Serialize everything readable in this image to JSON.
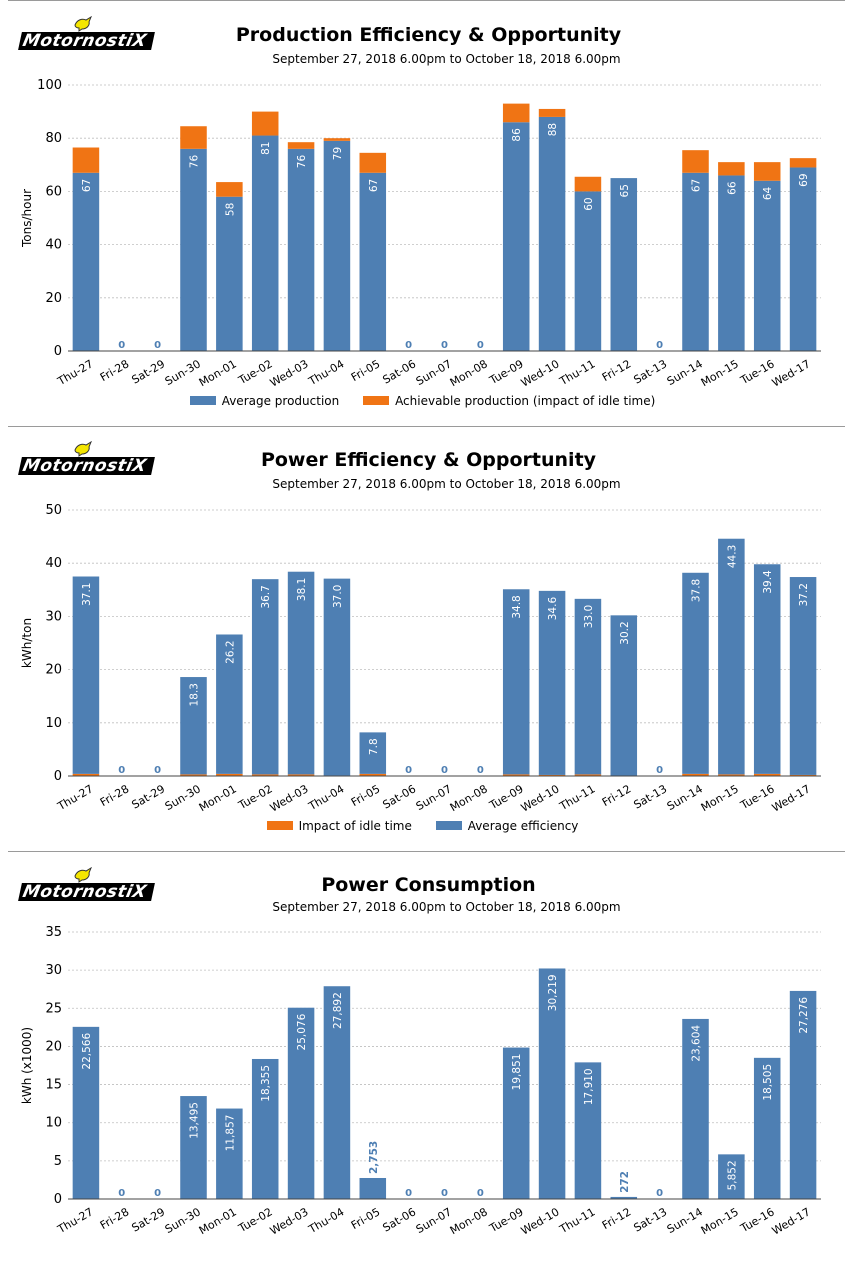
{
  "colors": {
    "blue": "#4e7fb3",
    "orange": "#f07414",
    "grid": "#bfbfbf"
  },
  "logo": {
    "text": "MotornostiX",
    "icon": "bird-icon"
  },
  "chart_data": [
    {
      "type": "bar",
      "stacked": true,
      "title": "Production Efficiency & Opportunity",
      "subtitle": "September 27, 2018 6.00pm to October 18, 2018 6.00pm",
      "ylabel": "Tons/hour",
      "ylim": [
        0,
        100
      ],
      "yticks": [
        0,
        20,
        40,
        60,
        80,
        100
      ],
      "categories": [
        "Thu-27",
        "Fri-28",
        "Sat-29",
        "Sun-30",
        "Mon-01",
        "Tue-02",
        "Wed-03",
        "Thu-04",
        "Fri-05",
        "Sat-06",
        "Sun-07",
        "Mon-08",
        "Tue-09",
        "Wed-10",
        "Thu-11",
        "Fri-12",
        "Sat-13",
        "Sun-14",
        "Mon-15",
        "Tue-16",
        "Wed-17"
      ],
      "series": [
        {
          "name": "Average production",
          "color": "#4e7fb3",
          "values": [
            67,
            0,
            0,
            76,
            58,
            81,
            76,
            79,
            67,
            0,
            0,
            0,
            86,
            88,
            60,
            65,
            0,
            67,
            66,
            64,
            69
          ],
          "labels": [
            "67",
            "0",
            "0",
            "76",
            "58",
            "81",
            "76",
            "79",
            "67",
            "0",
            "0",
            "0",
            "86",
            "88",
            "60",
            "65",
            "0",
            "67",
            "66",
            "64",
            "69"
          ]
        },
        {
          "name": "Achievable production (impact of idle time)",
          "color": "#f07414",
          "values": [
            9.5,
            0,
            0,
            8.5,
            5.5,
            9,
            2.5,
            1,
            7.5,
            0,
            0,
            0,
            7,
            3,
            5.5,
            0,
            0,
            8.5,
            5,
            7,
            3.5
          ]
        }
      ],
      "legend": [
        "Average production",
        "Achievable production (impact of idle time)"
      ]
    },
    {
      "type": "bar",
      "stacked": true,
      "title": "Power Efficiency & Opportunity",
      "subtitle": "September 27, 2018 6.00pm to October 18, 2018 6.00pm",
      "ylabel": "kWh/ton",
      "ylim": [
        0,
        50
      ],
      "yticks": [
        0,
        10,
        20,
        30,
        40,
        50
      ],
      "categories": [
        "Thu-27",
        "Fri-28",
        "Sat-29",
        "Sun-30",
        "Mon-01",
        "Tue-02",
        "Wed-03",
        "Thu-04",
        "Fri-05",
        "Sat-06",
        "Sun-07",
        "Mon-08",
        "Tue-09",
        "Wed-10",
        "Thu-11",
        "Fri-12",
        "Sat-13",
        "Sun-14",
        "Mon-15",
        "Tue-16",
        "Wed-17"
      ],
      "series": [
        {
          "name": "Impact of idle time",
          "color": "#f07414",
          "values": [
            0.4,
            0,
            0,
            0.3,
            0.4,
            0.3,
            0.3,
            0.1,
            0.4,
            0,
            0,
            0,
            0.3,
            0.2,
            0.3,
            0,
            0,
            0.4,
            0.3,
            0.4,
            0.2
          ]
        },
        {
          "name": "Average efficiency",
          "color": "#4e7fb3",
          "values": [
            37.1,
            0,
            0,
            18.3,
            26.2,
            36.7,
            38.1,
            37.0,
            7.8,
            0,
            0,
            0,
            34.8,
            34.6,
            33.0,
            30.2,
            0,
            37.8,
            44.3,
            39.4,
            37.2
          ],
          "labels": [
            "37.1",
            "0",
            "0",
            "18.3",
            "26.2",
            "36.7",
            "38.1",
            "37.0",
            "7.8",
            "0",
            "0",
            "0",
            "34.8",
            "34.6",
            "33.0",
            "30.2",
            "0",
            "37.8",
            "44.3",
            "39.4",
            "37.2"
          ]
        }
      ],
      "legend": [
        "Impact of idle time",
        "Average efficiency"
      ]
    },
    {
      "type": "bar",
      "title": "Power Consumption",
      "subtitle": "September 27, 2018 6.00pm to October 18, 2018 6.00pm",
      "ylabel": "kWh  (x1000)",
      "ylim": [
        0,
        35
      ],
      "yticks": [
        0,
        5,
        10,
        15,
        20,
        25,
        30,
        35
      ],
      "categories": [
        "Thu-27",
        "Fri-28",
        "Sat-29",
        "Sun-30",
        "Mon-01",
        "Tue-02",
        "Wed-03",
        "Thu-04",
        "Fri-05",
        "Sat-06",
        "Sun-07",
        "Mon-08",
        "Tue-09",
        "Wed-10",
        "Thu-11",
        "Fri-12",
        "Sat-13",
        "Sun-14",
        "Mon-15",
        "Tue-16",
        "Wed-17"
      ],
      "series": [
        {
          "color": "#4e7fb3",
          "values": [
            22.566,
            0,
            0,
            13.495,
            11.857,
            18.355,
            25.076,
            27.892,
            2.753,
            0,
            0,
            0,
            19.851,
            30.219,
            17.91,
            0.272,
            0,
            23.604,
            5.852,
            18.505,
            27.276
          ],
          "labels": [
            "22,566",
            "0",
            "0",
            "13,495",
            "11,857",
            "18,355",
            "25,076",
            "27,892",
            "2,753",
            "0",
            "0",
            "0",
            "19,851",
            "30,219",
            "17,910",
            "272",
            "0",
            "23,604",
            "5,852",
            "18,505",
            "27,276"
          ]
        }
      ],
      "legend": []
    }
  ]
}
